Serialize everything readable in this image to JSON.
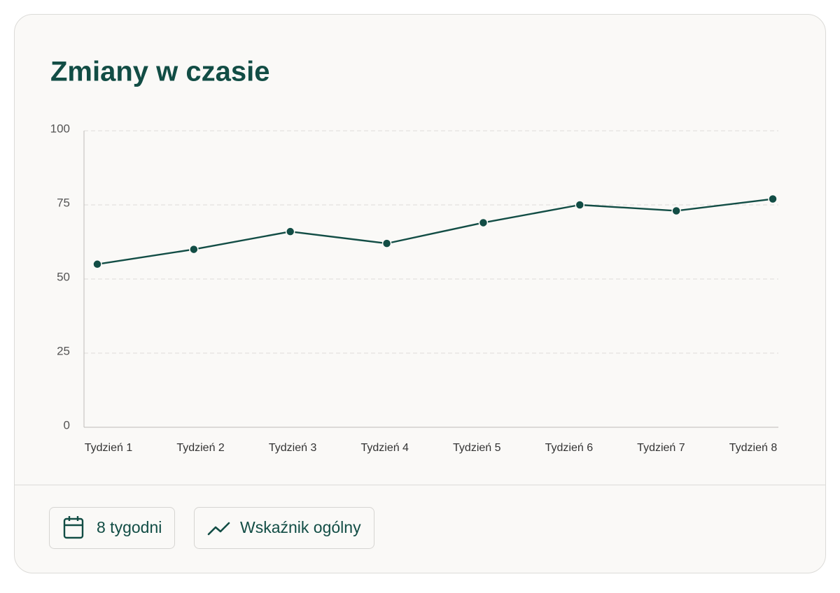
{
  "chart_data": {
    "type": "line",
    "title": "Zmiany w czasie",
    "categories": [
      "Tydzień 1",
      "Tydzień 2",
      "Tydzień 3",
      "Tydzień 4",
      "Tydzień 5",
      "Tydzień 6",
      "Tydzień 7",
      "Tydzień 8"
    ],
    "values": [
      55,
      60,
      66,
      62,
      69,
      75,
      73,
      77
    ],
    "color": "#124d45",
    "ylim": [
      0,
      100
    ],
    "yticks": [
      0,
      25,
      50,
      75,
      100
    ],
    "grid": true
  },
  "footer": {
    "buttons": [
      "8 tygodni",
      "Wskaźnik ogólny"
    ]
  }
}
